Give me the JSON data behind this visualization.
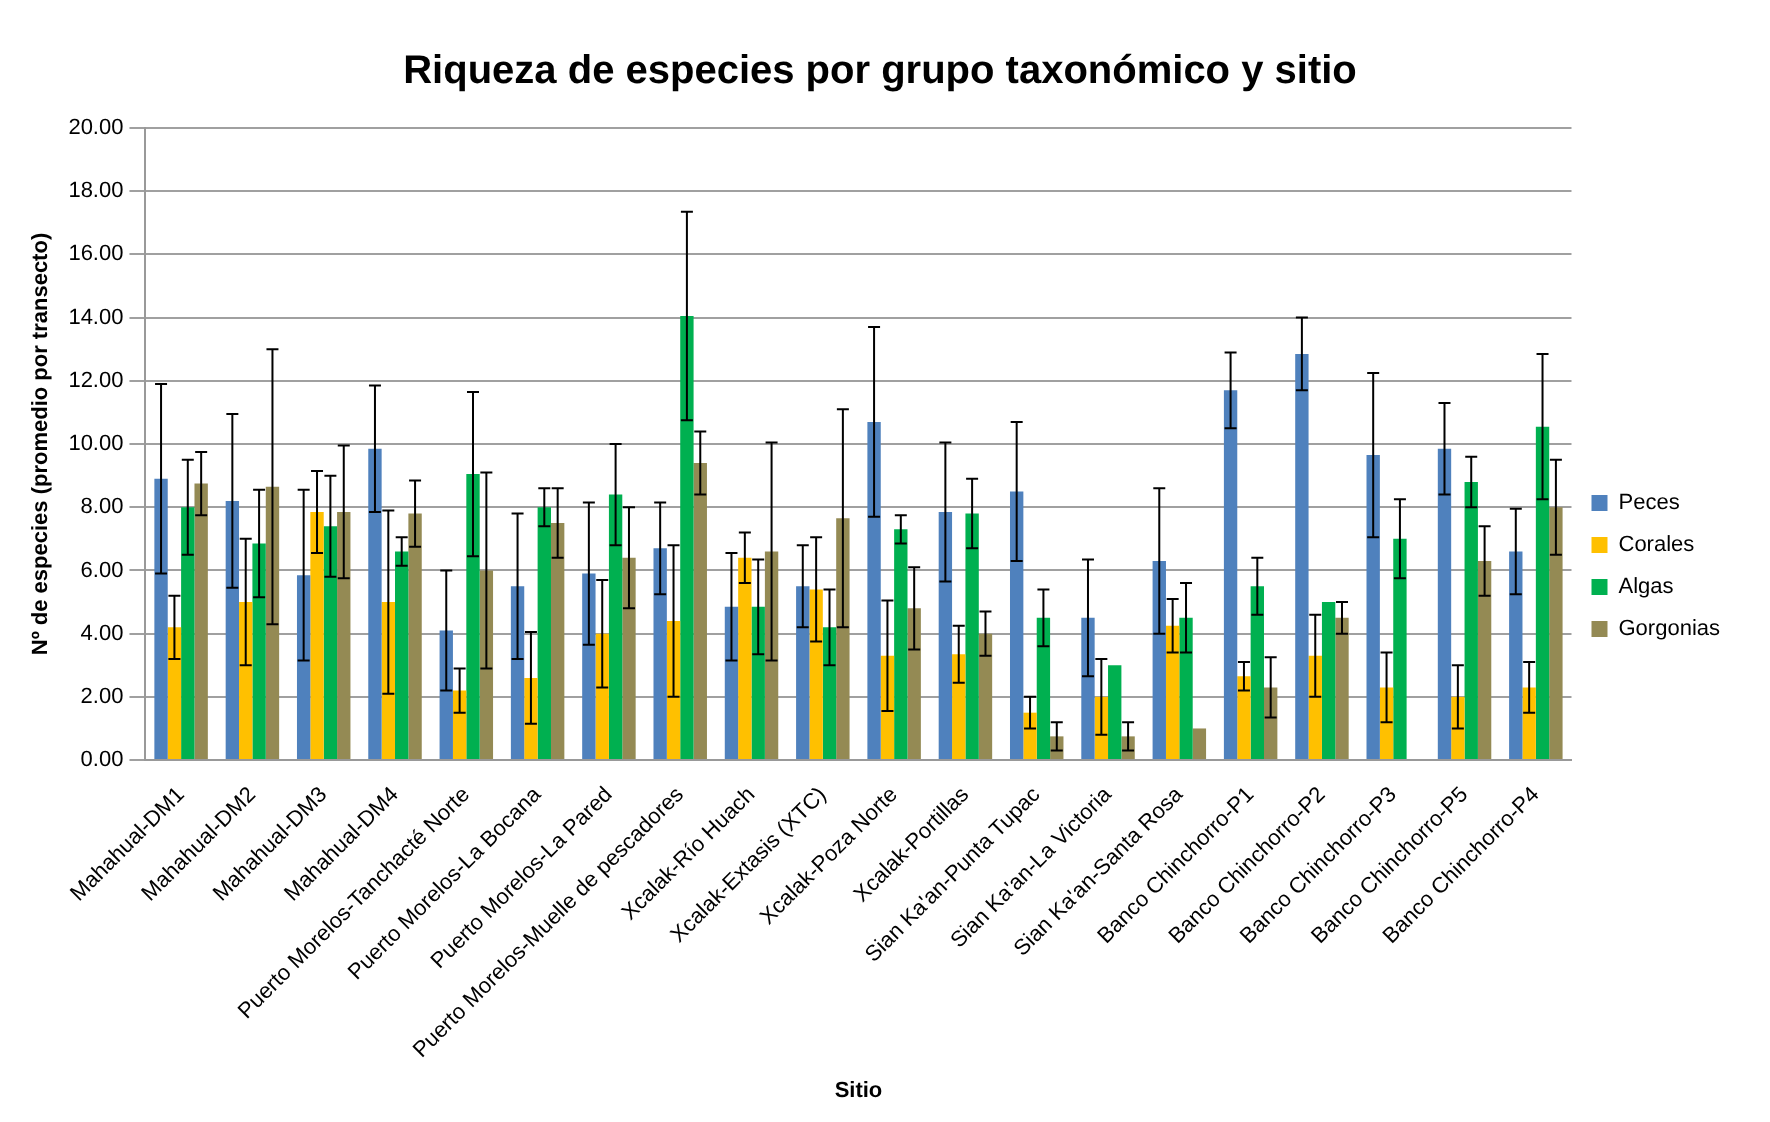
{
  "chart_data": {
    "type": "bar",
    "title": "Riqueza de especies por grupo taxonómico y sitio",
    "xlabel": "Sitio",
    "ylabel": "Nº de especies (promedio por transecto)",
    "categories": [
      "Mahahual-DM1",
      "Mahahual-DM2",
      "Mahahual-DM3",
      "Mahahual-DM4",
      "Puerto Morelos-Tanchacté Norte",
      "Puerto Morelos-La Bocana",
      "Puerto Morelos-La Pared",
      "Puerto Morelos-Muelle de pescadores",
      "Xcalak-Río Huach",
      "Xcalak-Extasis (XTC)",
      "Xcalak-Poza Norte",
      "Xcalak-Portillas",
      "Sian Ka'an-Punta Tupac",
      "Sian Ka'an-La Victoria",
      "Sian Ka'an-Santa Rosa",
      "Banco Chinchorro-P1",
      "Banco Chinchorro-P2",
      "Banco Chinchorro-P3",
      "Banco Chinchorro-P5",
      "Banco Chinchorro-P4"
    ],
    "series": [
      {
        "name": "Peces",
        "color": "#4f81bd",
        "values": [
          8.9,
          8.2,
          5.85,
          9.85,
          4.1,
          5.5,
          5.9,
          6.7,
          4.85,
          5.5,
          10.7,
          7.85,
          8.5,
          4.5,
          6.3,
          11.7,
          12.85,
          9.65,
          9.85,
          6.6
        ],
        "errors": [
          3.0,
          2.75,
          2.7,
          2.0,
          1.9,
          2.3,
          2.25,
          1.45,
          1.7,
          1.3,
          3.0,
          2.2,
          2.2,
          1.85,
          2.3,
          1.2,
          1.15,
          2.6,
          1.45,
          1.35
        ]
      },
      {
        "name": "Corales",
        "color": "#ffc000",
        "values": [
          4.2,
          5.0,
          7.85,
          5.0,
          2.2,
          2.6,
          4.0,
          4.4,
          6.4,
          5.4,
          3.3,
          3.35,
          1.5,
          2.0,
          4.25,
          2.65,
          3.3,
          2.3,
          2.0,
          2.3
        ],
        "errors": [
          1.0,
          2.0,
          1.3,
          2.9,
          0.7,
          1.45,
          1.7,
          2.4,
          0.8,
          1.65,
          1.75,
          0.9,
          0.5,
          1.2,
          0.85,
          0.45,
          1.3,
          1.1,
          1.0,
          0.8
        ]
      },
      {
        "name": "Algas",
        "color": "#00b050",
        "values": [
          8.0,
          6.85,
          7.4,
          6.6,
          9.05,
          8.0,
          8.4,
          14.05,
          4.85,
          4.2,
          7.3,
          7.8,
          4.5,
          3.0,
          4.5,
          5.5,
          5.0,
          7.0,
          8.8,
          10.55
        ],
        "errors": [
          1.5,
          1.7,
          1.6,
          0.45,
          2.6,
          0.6,
          1.6,
          3.3,
          1.5,
          1.2,
          0.45,
          1.1,
          0.9,
          null,
          1.1,
          0.9,
          null,
          1.25,
          0.8,
          2.3
        ]
      },
      {
        "name": "Gorgonias",
        "color": "#948a54",
        "values": [
          8.75,
          8.65,
          7.85,
          7.8,
          6.0,
          7.5,
          6.4,
          9.4,
          6.6,
          7.65,
          4.8,
          4.0,
          0.75,
          0.75,
          1.0,
          2.3,
          4.5,
          null,
          6.3,
          8.0
        ],
        "errors": [
          1.0,
          4.35,
          2.1,
          1.05,
          3.1,
          1.1,
          1.6,
          1.0,
          3.45,
          3.45,
          1.3,
          0.7,
          0.45,
          0.45,
          null,
          0.95,
          0.5,
          null,
          1.1,
          1.5
        ]
      }
    ],
    "ylim": [
      0,
      20
    ],
    "yticks": [
      {
        "value": 0,
        "label": "0.00"
      },
      {
        "value": 2,
        "label": "2.00"
      },
      {
        "value": 4,
        "label": "4.00"
      },
      {
        "value": 6,
        "label": "6.00"
      },
      {
        "value": 8,
        "label": "8.00"
      },
      {
        "value": 10,
        "label": "10.00"
      },
      {
        "value": 12,
        "label": "12.00"
      },
      {
        "value": 14,
        "label": "14.00"
      },
      {
        "value": 16,
        "label": "16.00"
      },
      {
        "value": 18,
        "label": "18.00"
      },
      {
        "value": 20,
        "label": "20.00"
      }
    ],
    "grid": "y",
    "legend": "right"
  }
}
